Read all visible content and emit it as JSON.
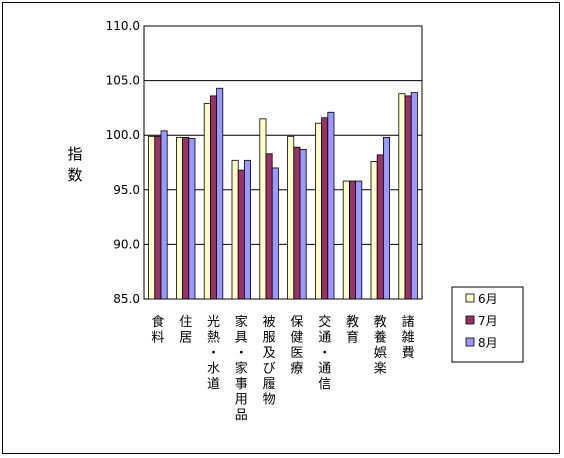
{
  "chart_data": {
    "type": "bar",
    "title": "",
    "xlabel": "",
    "ylabel": "指数",
    "ylim": [
      85.0,
      110.0
    ],
    "yticks": [
      "85.0",
      "90.0",
      "95.0",
      "100.0",
      "105.0",
      "110.0"
    ],
    "grid": true,
    "legend_position": "right",
    "categories": [
      "食料",
      "住居",
      "光熱・水道",
      "家具・家事用品",
      "被服及び履物",
      "保健医療",
      "交通・通信",
      "教育",
      "教養娯楽",
      "諸雑費"
    ],
    "series": [
      {
        "name": "6月",
        "color": "#ffffcc",
        "values": [
          99.9,
          99.8,
          102.9,
          97.7,
          101.5,
          99.9,
          101.1,
          95.8,
          97.6,
          103.8
        ]
      },
      {
        "name": "7月",
        "color": "#993366",
        "values": [
          99.9,
          99.8,
          103.6,
          96.8,
          98.3,
          98.9,
          101.6,
          95.8,
          98.2,
          103.6
        ]
      },
      {
        "name": "8月",
        "color": "#9999ff",
        "values": [
          100.4,
          99.7,
          104.3,
          97.7,
          97.0,
          98.7,
          102.1,
          95.8,
          99.8,
          103.9
        ]
      }
    ]
  }
}
